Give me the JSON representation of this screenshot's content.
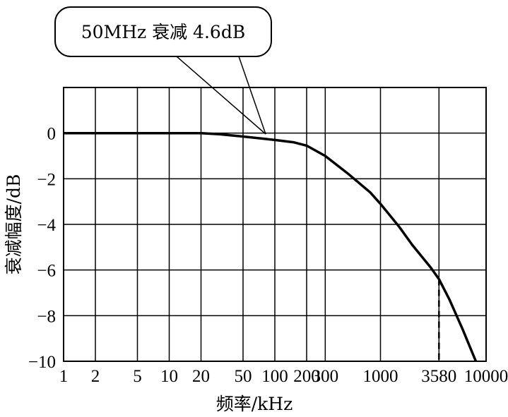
{
  "chart_data": {
    "type": "line",
    "title": "",
    "xlabel": "频率/kHz",
    "ylabel": "衰减幅度/dB",
    "xscale": "log",
    "xlim": [
      1,
      10000
    ],
    "ylim": [
      -10,
      2
    ],
    "grid": true,
    "x_tick_labels": [
      "1",
      "2",
      "5",
      "10",
      "20",
      "50",
      "100",
      "200",
      "300",
      "1000",
      "3580",
      "10000"
    ],
    "y_tick_labels": [
      "0",
      "−2",
      "−4",
      "−6",
      "−8",
      "−10"
    ],
    "y_ticks": [
      0,
      -2,
      -4,
      -6,
      -8,
      -10
    ],
    "series": [
      {
        "x": [
          1,
          10,
          20,
          30,
          50,
          80,
          100,
          150,
          200,
          300,
          500,
          800,
          1000,
          1500,
          2000,
          3000,
          3580,
          4500,
          6000,
          8000
        ],
        "y": [
          0,
          0,
          0,
          -0.05,
          -0.15,
          -0.25,
          -0.3,
          -0.4,
          -0.55,
          -1.0,
          -1.8,
          -2.6,
          -3.1,
          -4.1,
          -4.9,
          -5.9,
          -6.4,
          -7.3,
          -8.6,
          -10
        ]
      }
    ],
    "annotations": [
      {
        "text": "50MHz 衰减 4.6dB"
      }
    ],
    "reference_line": {
      "x": 3580,
      "style": "dashed"
    }
  }
}
